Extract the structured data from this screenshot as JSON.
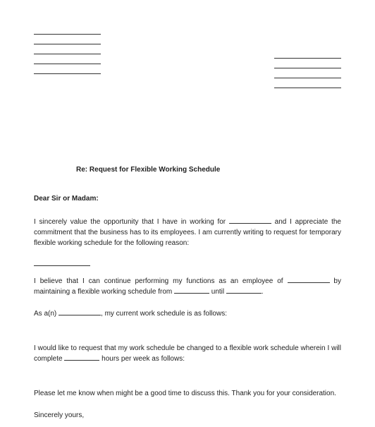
{
  "document": {
    "background_color": "#ffffff",
    "text_color": "#222222",
    "font_family": "Arial, Helvetica, sans-serif",
    "body_fontsize": 10,
    "sender_blank_lines": 5,
    "recipient_blank_lines": 4,
    "blank_line_width": 95,
    "subject_prefix": "Re: ",
    "subject": "Request for Flexible Working Schedule",
    "salutation": "Dear Sir or Madam:",
    "para1_part1": "I sincerely value the opportunity that I have in working for ",
    "para1_part2": " and I appreciate the commitment that the business has to its employees. I am currently writing to request for temporary flexible working schedule for the following reason:",
    "para2_part1": "I believe that I can continue performing my functions as an employee of ",
    "para2_part2": " by maintaining a flexible working schedule from ",
    "para2_part3": " until ",
    "para2_part4": ".",
    "para3_part1": "As a(n) ",
    "para3_part2": ", my current work schedule is as follows:",
    "para4_part1": "I would like to request that my work schedule be changed to a flexible work schedule wherein I will complete ",
    "para4_part2": " hours per week as follows:",
    "para5": "Please let me know when might be a good time to discuss this. Thank you for your consideration.",
    "closing": "Sincerely yours,"
  }
}
